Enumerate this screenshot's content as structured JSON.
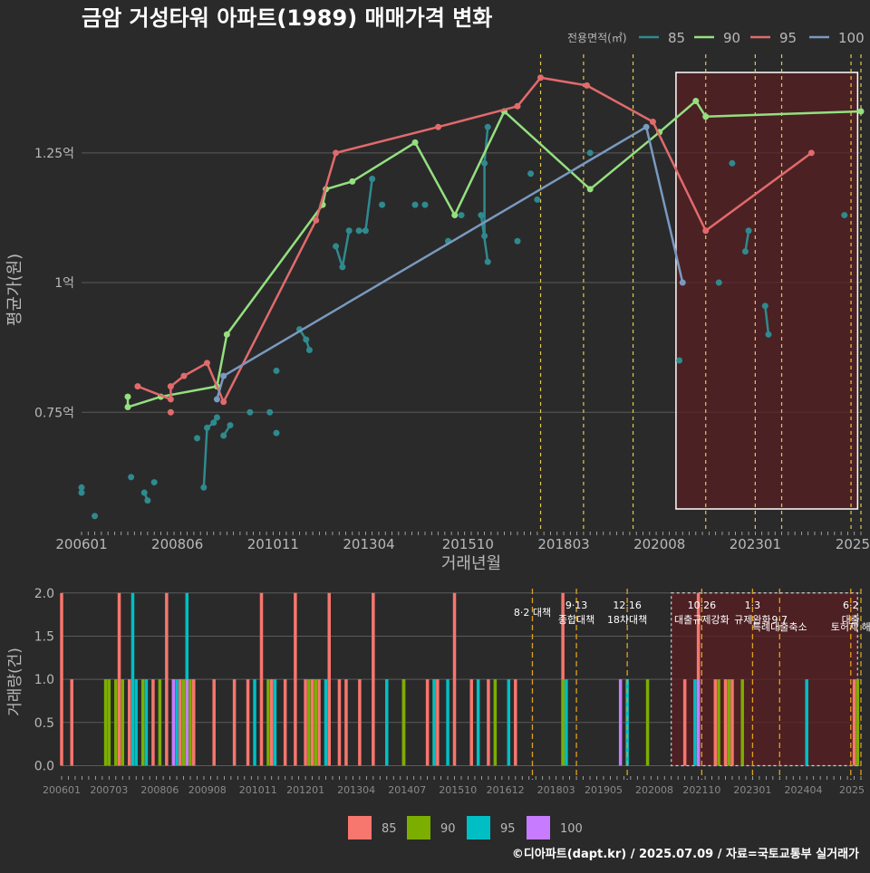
{
  "title": "금암 거성타워 아파트(1989) 매매가격 변화",
  "credit": "©디아파트(dapt.kr) / 2025.07.09 / 자료=국토교통부 실거래가",
  "colors": {
    "background": "#2a2a2b",
    "grid": "#5a5a5a",
    "text": "#b8b8b8",
    "title": "#ffffff",
    "policy_line": "#e5c94a",
    "highlight": "#5a1e22"
  },
  "chart_data": [
    {
      "type": "line",
      "xlabel": "거래년월",
      "ylabel": "평균가(원)",
      "x_ticks": [
        "200601",
        "200806",
        "201011",
        "201304",
        "201510",
        "201803",
        "202008",
        "202301",
        "2025"
      ],
      "y_ticks": [
        {
          "value": 7500,
          "label": "0.75억"
        },
        {
          "value": 10000,
          "label": "1억"
        },
        {
          "value": 12500,
          "label": "1.25억"
        }
      ],
      "ylim": [
        5200,
        14400
      ],
      "xlim": [
        "2006-01",
        "2025-09"
      ],
      "legend_title": "전용면적(㎡)",
      "legend_position": "top-right",
      "highlight_range": [
        "2021-01",
        "2025-08"
      ],
      "policy_dates": [
        "2017-08",
        "2018-09",
        "2019-12",
        "2021-10",
        "2023-01",
        "2023-09",
        "2025-06",
        "2025-09"
      ],
      "series": [
        {
          "name": "85",
          "color": "#2f8a8e",
          "groups": [
            [
              [
                "2006-01",
                6050
              ]
            ],
            [
              [
                "2006-01",
                5950
              ]
            ],
            [
              [
                "2006-05",
                5500
              ]
            ],
            [
              [
                "2007-04",
                6250
              ]
            ],
            [
              [
                "2007-08",
                5950
              ],
              [
                "2007-09",
                5800
              ]
            ],
            [
              [
                "2007-11",
                6150
              ]
            ],
            [
              [
                "2008-12",
                7000
              ]
            ],
            [
              [
                "2009-02",
                6050
              ],
              [
                "2009-03",
                7200
              ],
              [
                "2009-05",
                7300
              ],
              [
                "2009-06",
                7400
              ]
            ],
            [
              [
                "2009-08",
                7050
              ],
              [
                "2009-10",
                7250
              ]
            ],
            [
              [
                "2010-04",
                7500
              ]
            ],
            [
              [
                "2010-10",
                7500
              ]
            ],
            [
              [
                "2010-12",
                7100
              ]
            ],
            [
              [
                "2010-12",
                8300
              ]
            ],
            [
              [
                "2011-07",
                9100
              ],
              [
                "2011-09",
                8900
              ],
              [
                "2011-10",
                8700
              ]
            ],
            [
              [
                "2012-06",
                10700
              ],
              [
                "2012-08",
                10300
              ],
              [
                "2012-10",
                11000
              ]
            ],
            [
              [
                "2013-01",
                11000
              ],
              [
                "2013-03",
                11000
              ],
              [
                "2013-05",
                12000
              ]
            ],
            [
              [
                "2013-08",
                11500
              ]
            ],
            [
              [
                "2014-06",
                11500
              ]
            ],
            [
              [
                "2014-09",
                11500
              ]
            ],
            [
              [
                "2015-04",
                10800
              ]
            ],
            [
              [
                "2015-08",
                11300
              ]
            ],
            [
              [
                "2016-02",
                11300
              ],
              [
                "2016-04",
                10400
              ]
            ],
            [
              [
                "2016-03",
                10900
              ],
              [
                "2016-03",
                12300
              ],
              [
                "2016-04",
                13000
              ]
            ],
            [
              [
                "2017-01",
                10800
              ]
            ],
            [
              [
                "2017-05",
                12100
              ]
            ],
            [
              [
                "2017-07",
                11600
              ]
            ],
            [
              [
                "2018-11",
                12500
              ]
            ],
            [
              [
                "2021-02",
                8500
              ]
            ],
            [
              [
                "2022-02",
                10000
              ]
            ],
            [
              [
                "2022-06",
                12300
              ]
            ],
            [
              [
                "2022-10",
                10600
              ],
              [
                "2022-11",
                11000
              ]
            ],
            [
              [
                "2023-04",
                9550
              ],
              [
                "2023-05",
                9000
              ]
            ],
            [
              [
                "2025-04",
                11300
              ]
            ]
          ]
        },
        {
          "name": "90",
          "color": "#94e07f",
          "groups": [
            [
              [
                "2007-03",
                7800
              ],
              [
                "2007-03",
                7600
              ],
              [
                "2008-01",
                7800
              ],
              [
                "2009-06",
                8000
              ],
              [
                "2009-09",
                9000
              ],
              [
                "2012-02",
                11500
              ],
              [
                "2012-03",
                11800
              ],
              [
                "2012-11",
                11950
              ],
              [
                "2014-06",
                12700
              ],
              [
                "2015-06",
                11300
              ],
              [
                "2016-09",
                13300
              ],
              [
                "2018-11",
                11800
              ],
              [
                "2020-08",
                12900
              ],
              [
                "2021-07",
                13500
              ],
              [
                "2021-10",
                13200
              ],
              [
                "2025-09",
                13300
              ]
            ]
          ]
        },
        {
          "name": "95",
          "color": "#e26a6b",
          "groups": [
            [
              [
                "2007-06",
                8000
              ],
              [
                "2008-04",
                7750
              ],
              [
                "2008-04",
                8000
              ],
              [
                "2008-08",
                8200
              ],
              [
                "2009-03",
                8450
              ],
              [
                "2009-08",
                7700
              ],
              [
                "2011-12",
                11200
              ],
              [
                "2012-06",
                12500
              ],
              [
                "2015-01",
                13000
              ],
              [
                "2017-01",
                13400
              ],
              [
                "2017-08",
                13950
              ],
              [
                "2018-10",
                13800
              ],
              [
                "2020-06",
                13100
              ],
              [
                "2021-10",
                11000
              ],
              [
                "2024-06",
                12500
              ]
            ],
            [
              [
                "2008-04",
                7500
              ]
            ]
          ]
        },
        {
          "name": "100",
          "color": "#7a99be",
          "groups": [
            [
              [
                "2009-06",
                7750
              ],
              [
                "2009-08",
                8200
              ],
              [
                "2020-04",
                13000
              ],
              [
                "2021-03",
                10000
              ]
            ]
          ]
        }
      ]
    },
    {
      "type": "bar",
      "ylabel": "거래량(건)",
      "x_ticks": [
        "200601",
        "200703",
        "200806",
        "200908",
        "201011",
        "201201",
        "201304",
        "201407",
        "201510",
        "201612",
        "201803",
        "201905",
        "202008",
        "202110",
        "202301",
        "202404",
        "2025"
      ],
      "y_ticks": [
        {
          "value": 0,
          "label": "0.0"
        },
        {
          "value": 0.5,
          "label": "0.5"
        },
        {
          "value": 1,
          "label": "1.0"
        },
        {
          "value": 1.5,
          "label": "1.5"
        },
        {
          "value": 2,
          "label": "2.0"
        }
      ],
      "ylim": [
        -0.1,
        2.05
      ],
      "xlim": [
        "2006-01",
        "2025-09"
      ],
      "legend_position": "bottom",
      "highlight_range": [
        "2021-01",
        "2025-08"
      ],
      "policy_dates": [
        "2017-08",
        "2018-09",
        "2019-12",
        "2021-10",
        "2023-01",
        "2023-09",
        "2025-06",
        "2025-09"
      ],
      "annotations": [
        {
          "date": "2017-08",
          "text": "8·2 대책",
          "line": 1
        },
        {
          "date": "2018-09",
          "text": "9·13",
          "line": 0
        },
        {
          "date": "2018-09",
          "text": "종합대책",
          "line": 2
        },
        {
          "date": "2019-12",
          "text": "12·16",
          "line": 0
        },
        {
          "date": "2019-12",
          "text": "18차대책",
          "line": 2
        },
        {
          "date": "2021-10",
          "text": "10·26",
          "line": 0
        },
        {
          "date": "2021-10",
          "text": "대출규제강화",
          "line": 2
        },
        {
          "date": "2023-01",
          "text": "1·3",
          "line": 0
        },
        {
          "date": "2023-01",
          "text": "규제완화",
          "line": 2
        },
        {
          "date": "2023-09",
          "text": "9·7",
          "line": 2
        },
        {
          "date": "2023-09",
          "text": "특례대출축소",
          "line": 3
        },
        {
          "date": "2025-06",
          "text": "6·2",
          "line": 0
        },
        {
          "date": "2025-06",
          "text": "대출",
          "line": 2
        },
        {
          "date": "2025-06",
          "text": "토허제 해",
          "line": 3
        }
      ],
      "series": [
        {
          "name": "85",
          "color": "#f7766d",
          "bars": [
            [
              "2006-01",
              2
            ],
            [
              "2006-04",
              1
            ],
            [
              "2007-06",
              2
            ],
            [
              "2007-09",
              1
            ],
            [
              "2008-04",
              1
            ],
            [
              "2008-08",
              2
            ],
            [
              "2008-12",
              1
            ],
            [
              "2009-04",
              1
            ],
            [
              "2009-10",
              1
            ],
            [
              "2010-04",
              1
            ],
            [
              "2010-08",
              1
            ],
            [
              "2010-12",
              2
            ],
            [
              "2011-03",
              1
            ],
            [
              "2011-07",
              1
            ],
            [
              "2011-10",
              2
            ],
            [
              "2012-01",
              1
            ],
            [
              "2012-03",
              1
            ],
            [
              "2012-05",
              1
            ],
            [
              "2012-08",
              2
            ],
            [
              "2012-11",
              1
            ],
            [
              "2013-01",
              1
            ],
            [
              "2013-05",
              1
            ],
            [
              "2013-09",
              2
            ],
            [
              "2014-01",
              1
            ],
            [
              "2014-06",
              1
            ],
            [
              "2015-01",
              1
            ],
            [
              "2015-04",
              1
            ],
            [
              "2015-09",
              2
            ],
            [
              "2016-02",
              1
            ],
            [
              "2016-07",
              1
            ],
            [
              "2017-03",
              1
            ],
            [
              "2018-05",
              2
            ],
            [
              "2021-05",
              1
            ],
            [
              "2021-09",
              2
            ],
            [
              "2022-02",
              1
            ],
            [
              "2022-05",
              1
            ],
            [
              "2022-07",
              1
            ],
            [
              "2025-07",
              1
            ]
          ]
        },
        {
          "name": "90",
          "color": "#7cae00",
          "bars": [
            [
              "2007-02",
              1
            ],
            [
              "2007-03",
              1
            ],
            [
              "2007-05",
              1
            ],
            [
              "2007-07",
              1
            ],
            [
              "2008-01",
              1
            ],
            [
              "2008-06",
              1
            ],
            [
              "2009-01",
              1
            ],
            [
              "2009-03",
              1
            ],
            [
              "2011-02",
              1
            ],
            [
              "2012-02",
              1
            ],
            [
              "2012-04",
              1
            ],
            [
              "2014-06",
              1
            ],
            [
              "2015-03",
              1
            ],
            [
              "2016-09",
              1
            ],
            [
              "2018-05",
              1
            ],
            [
              "2020-06",
              1
            ],
            [
              "2022-03",
              1
            ],
            [
              "2022-06",
              1
            ],
            [
              "2022-10",
              1
            ],
            [
              "2025-08",
              1
            ]
          ]
        },
        {
          "name": "95",
          "color": "#00bfc4",
          "bars": [
            [
              "2007-10",
              2
            ],
            [
              "2007-11",
              1
            ],
            [
              "2008-02",
              1
            ],
            [
              "2008-11",
              1
            ],
            [
              "2009-02",
              2
            ],
            [
              "2010-10",
              1
            ],
            [
              "2011-04",
              1
            ],
            [
              "2012-07",
              1
            ],
            [
              "2014-01",
              1
            ],
            [
              "2015-03",
              1
            ],
            [
              "2015-07",
              1
            ],
            [
              "2016-04",
              1
            ],
            [
              "2017-01",
              1
            ],
            [
              "2018-06",
              1
            ],
            [
              "2019-12",
              1
            ],
            [
              "2021-08",
              1
            ],
            [
              "2024-05",
              1
            ]
          ]
        },
        {
          "name": "100",
          "color": "#c77cff",
          "bars": [
            [
              "2008-10",
              1
            ],
            [
              "2009-02",
              1
            ],
            [
              "2019-10",
              1
            ],
            [
              "2021-09",
              1
            ]
          ]
        }
      ]
    }
  ]
}
